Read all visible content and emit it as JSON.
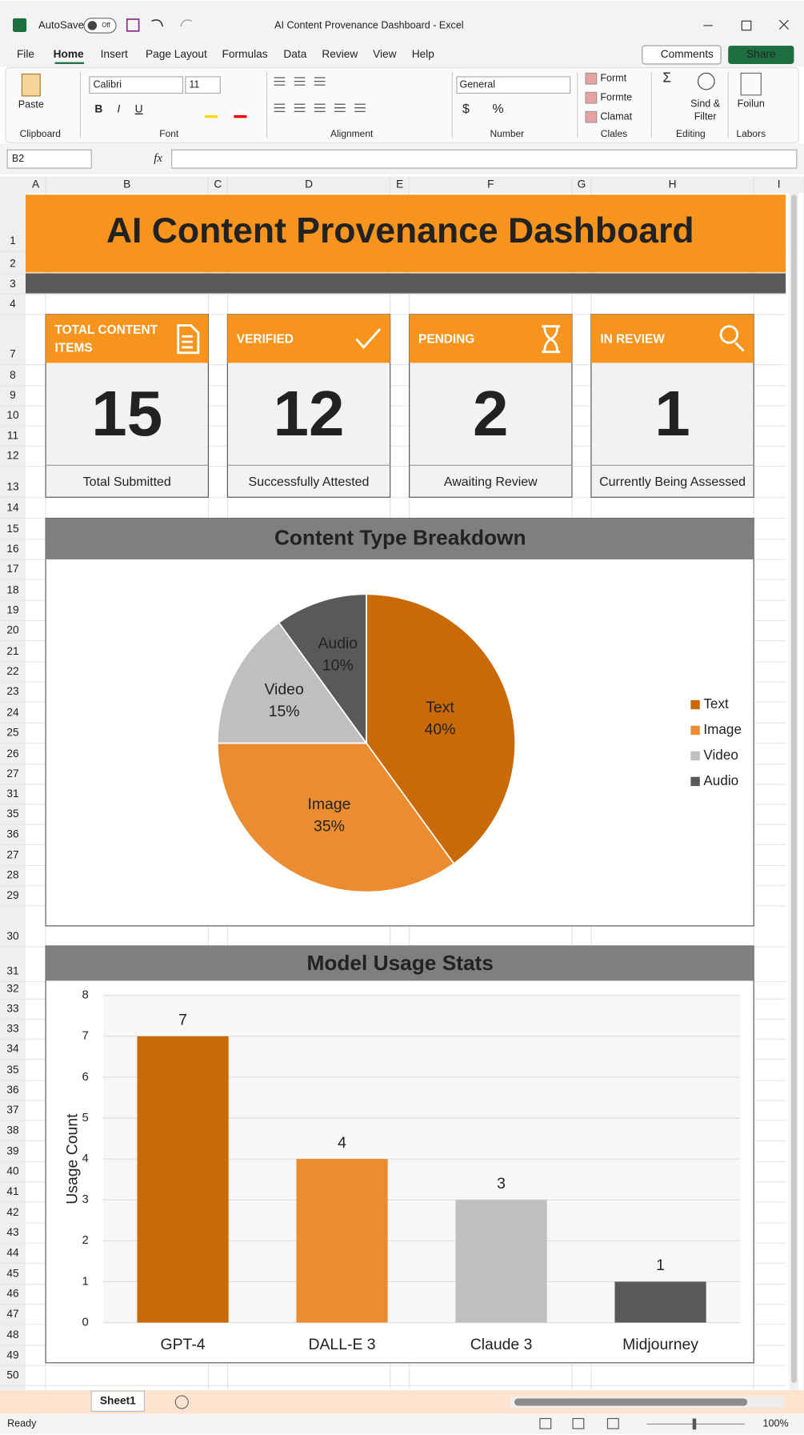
{
  "window": {
    "app_title": "AI Content Provenance Dashboard - Excel",
    "autosave": "AutoSave",
    "autosave_state": "Off"
  },
  "tabs": [
    "File",
    "Home",
    "Insert",
    "Page Layout",
    "Formulas",
    "Data",
    "Review",
    "View",
    "Help"
  ],
  "buttons": {
    "comments": "Comments",
    "share": "Share"
  },
  "ribbon": {
    "paste": "Paste",
    "font_name": "Calibri",
    "font_size": "11",
    "font_buttons": [
      "B",
      "I",
      "U"
    ],
    "number_format": "General",
    "number_buttons": [
      "$",
      "%"
    ],
    "styles": [
      "Formt",
      "Formte",
      "Clamat"
    ],
    "sum": "Σ",
    "sort_filter": [
      "Sind &",
      "Filter"
    ],
    "extra": "Foilun",
    "groups": [
      "Clipboard",
      "Font",
      "Alignment",
      "Number",
      "Clales",
      "Editing",
      "Labors"
    ]
  },
  "formula_bar": {
    "name_box": "B2",
    "fx": "fx"
  },
  "sheet": {
    "columns": [
      "A",
      "B",
      "C",
      "D",
      "E",
      "F",
      "G",
      "H",
      "I"
    ],
    "rows": [
      1,
      2,
      3,
      4,
      7,
      8,
      9,
      10,
      11,
      12,
      13,
      14,
      15,
      16,
      17,
      18,
      19,
      20,
      21,
      22,
      23,
      24,
      25,
      26,
      27,
      31,
      35,
      36,
      27,
      28,
      29,
      30,
      31,
      32,
      33,
      33,
      34,
      35,
      36,
      37,
      38,
      39,
      40,
      41,
      42,
      43,
      44,
      45,
      46,
      47,
      48,
      49,
      50
    ]
  },
  "dashboard": {
    "title": "AI Content Provenance Dashboard",
    "cards": [
      {
        "header": "TOTAL CONTENT ITEMS",
        "value": 15,
        "caption": "Total Submitted",
        "color": "#4a4a4a"
      },
      {
        "header": "VERIFIED",
        "value": 12,
        "caption": "Successfully Attested",
        "color": "#5f8a5c"
      },
      {
        "header": "PENDING",
        "value": 2,
        "caption": "Awaiting Review",
        "color": "#c4953c"
      },
      {
        "header": "IN REVIEW",
        "value": 1,
        "caption": "Currently Being Assessed",
        "color": "#b5514a"
      }
    ]
  },
  "chart_data": [
    {
      "type": "pie",
      "title": "Content Type Breakdown",
      "categories": [
        "Text",
        "Image",
        "Video",
        "Audio"
      ],
      "values": [
        40,
        35,
        15,
        10
      ],
      "value_labels": [
        "40%",
        "35%",
        "15%",
        "10%"
      ],
      "colors": [
        "#c96a06",
        "#ec8c30",
        "#bfbfbf",
        "#595959"
      ],
      "legend": "right"
    },
    {
      "type": "bar",
      "title": "Model Usage Stats",
      "y_label": "Usage Count",
      "categories": [
        "GPT-4",
        "DALL-E 3",
        "Claude 3",
        "Midjourney"
      ],
      "values": [
        7,
        4,
        3,
        1
      ],
      "colors": [
        "#c96a06",
        "#ec8c30",
        "#bfbfbf",
        "#595959"
      ],
      "ylim": [
        0,
        8
      ],
      "yticks": [
        0,
        1,
        2,
        3,
        4,
        5,
        6,
        7,
        8
      ],
      "grid": true
    }
  ],
  "status": {
    "sheet_tab": "Sheet1",
    "ready": "Ready",
    "zoom": "100%"
  }
}
